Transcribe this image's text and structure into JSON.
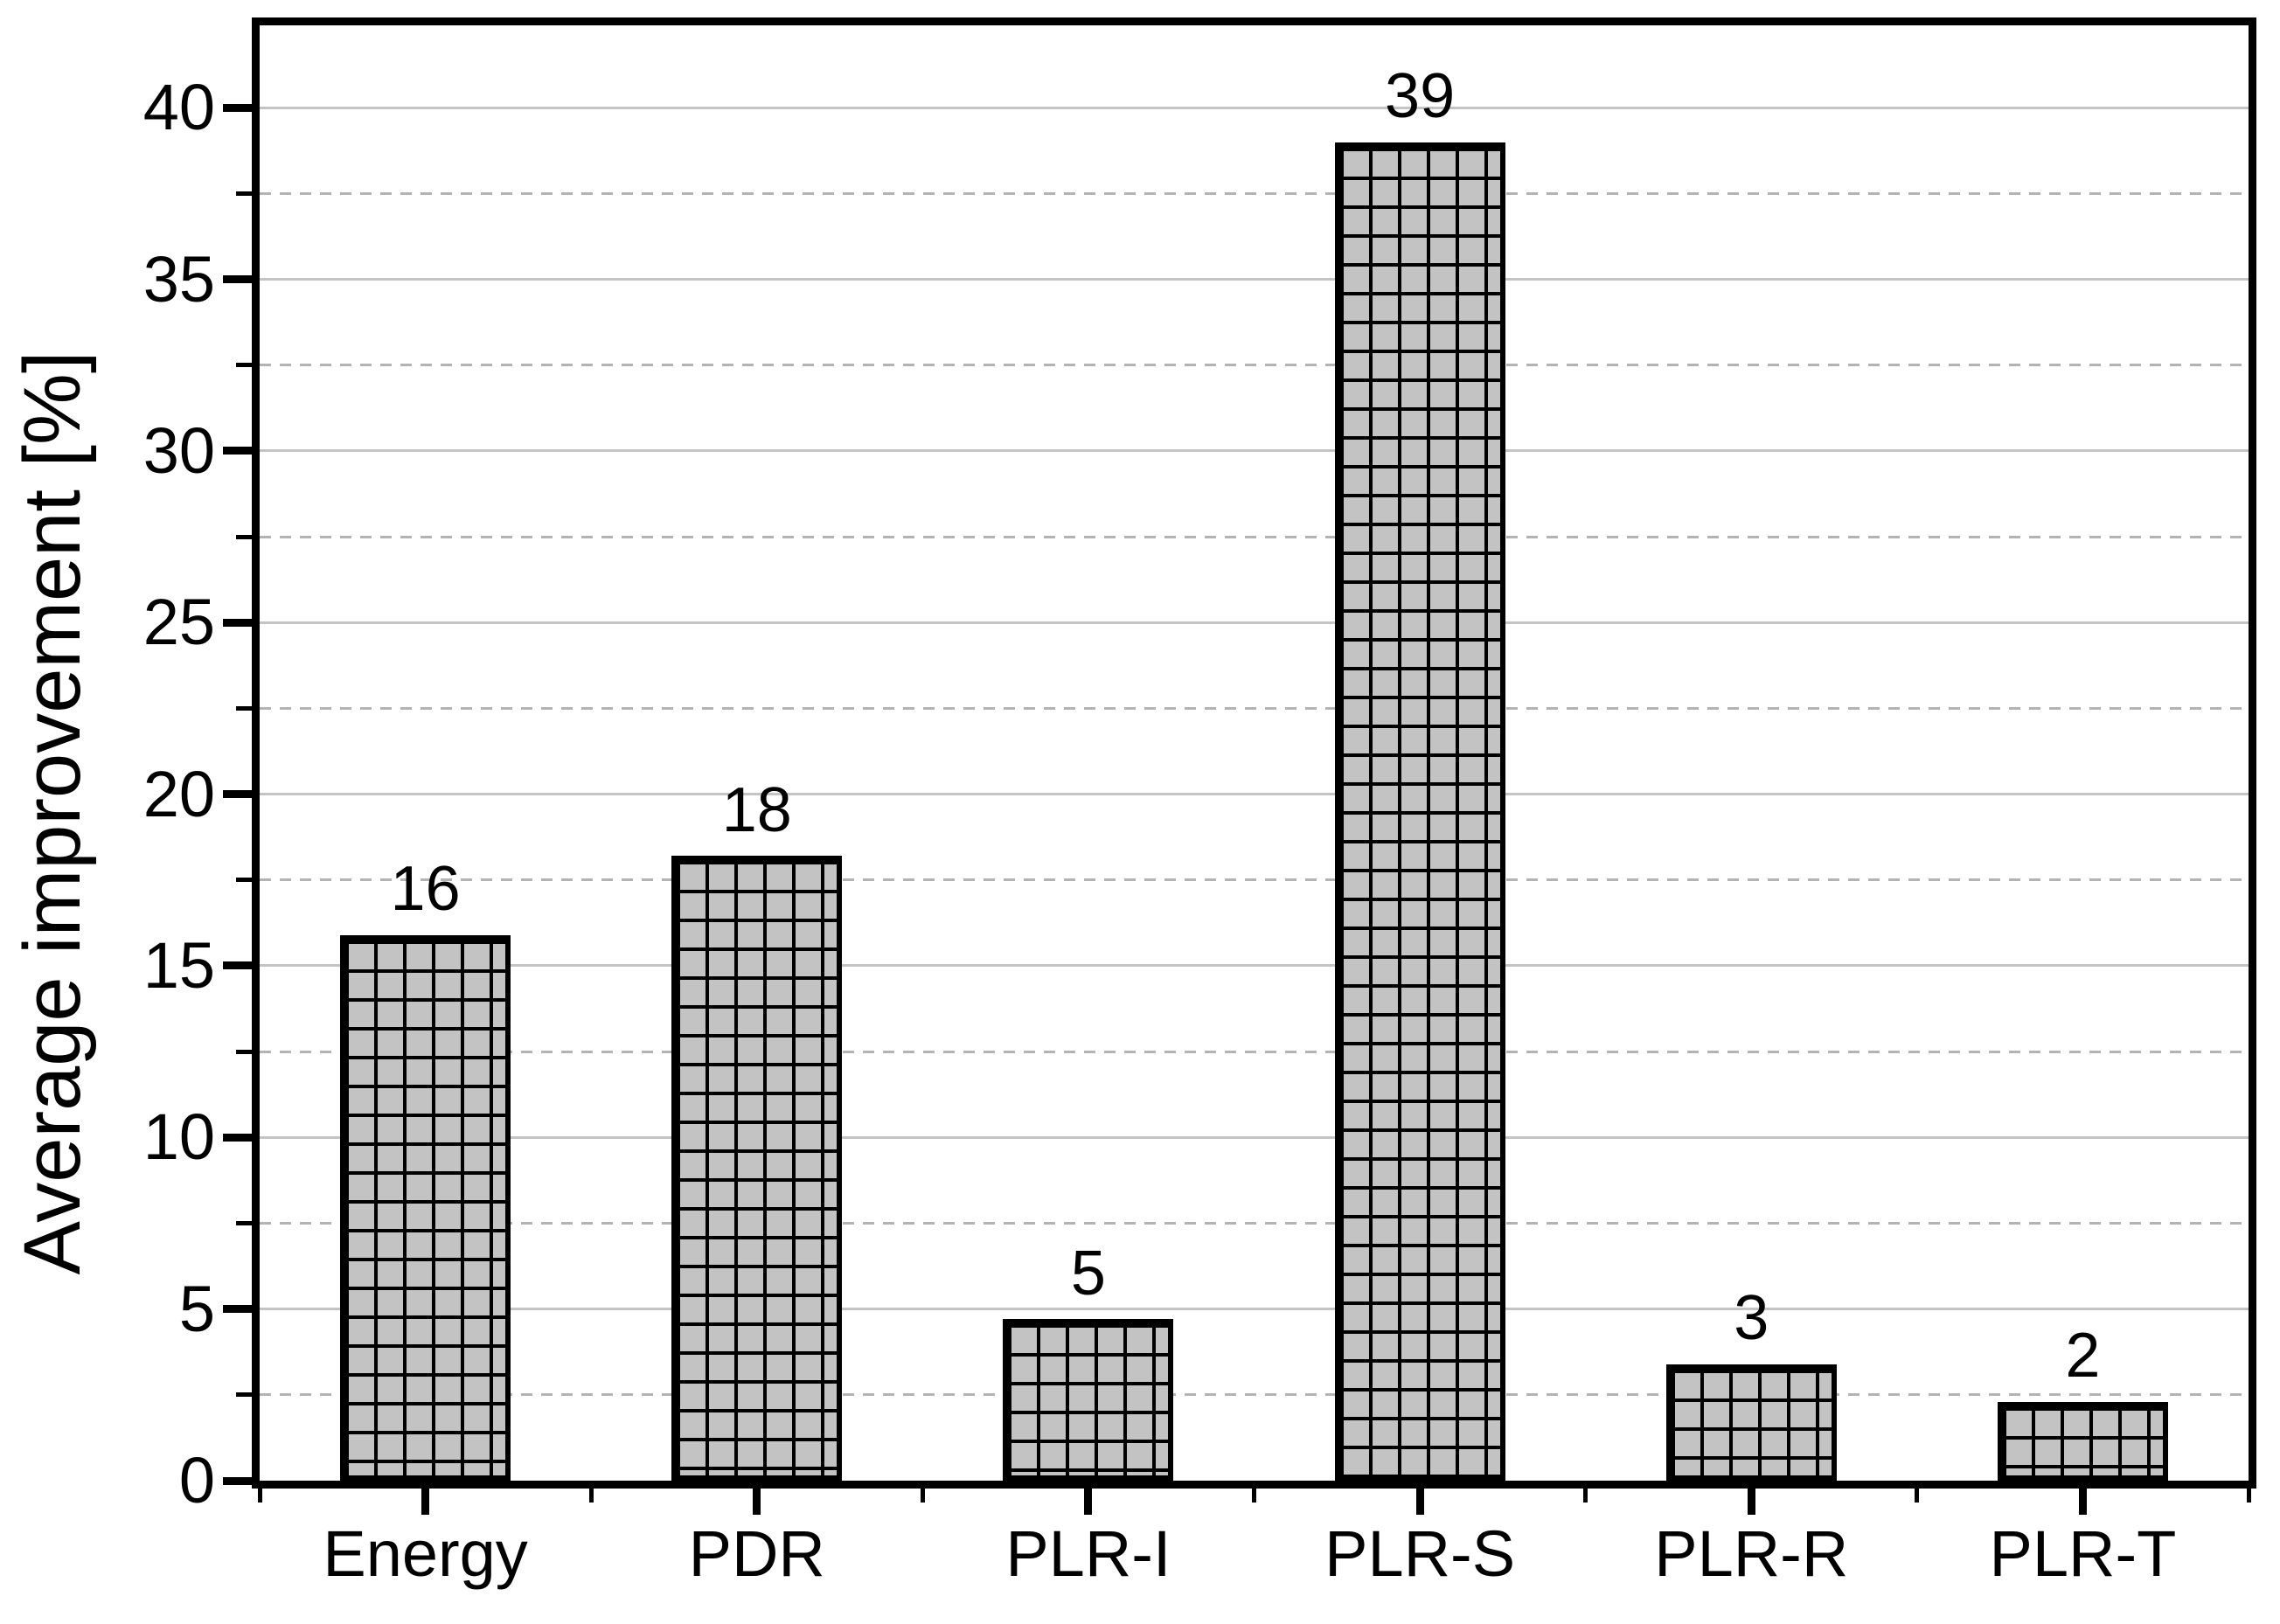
{
  "chart_data": {
    "type": "bar",
    "title": "",
    "xlabel": "",
    "ylabel": "Average improvement [%]",
    "categories": [
      "Energy",
      "PDR",
      "PLR-I",
      "PLR-S",
      "PLR-R",
      "PLR-T"
    ],
    "values": [
      15.9,
      18.2,
      4.7,
      39.0,
      3.4,
      2.3
    ],
    "bar_labels": [
      "16",
      "18",
      "5",
      "39",
      "3",
      "2"
    ],
    "ylim": [
      0,
      42.4
    ],
    "yticks_major": [
      0,
      5,
      10,
      15,
      20,
      25,
      30,
      35,
      40
    ],
    "ytick_labels": [
      "0",
      "5",
      "10",
      "15",
      "20",
      "25",
      "30",
      "35",
      "40"
    ],
    "yticks_minor": [
      2.5,
      7.5,
      12.5,
      17.5,
      22.5,
      27.5,
      32.5,
      37.5
    ],
    "grid": {
      "major_style": "solid",
      "minor_style": "dashed",
      "axes_box": true
    },
    "legend_position": "none",
    "bar_pattern": "crosshatch-grid",
    "colors": {
      "bar_fill": "#c3c3c3",
      "bar_border": "#000000",
      "grid_major": "#c4c4c4",
      "grid_minor": "#b3b3b3",
      "axis": "#000000",
      "text": "#000000",
      "background": "#ffffff"
    }
  }
}
